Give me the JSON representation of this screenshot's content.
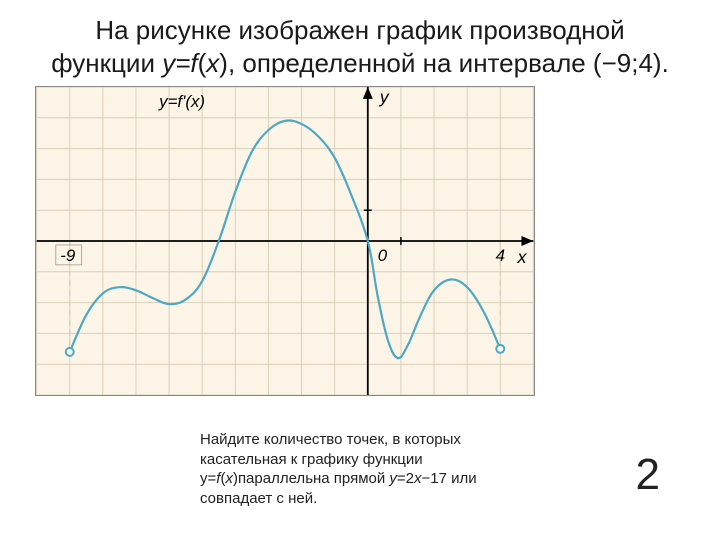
{
  "title_parts": {
    "p1": "На рисунке изображен график производной функции ",
    "fn": "y=f",
    "p2": "(",
    "x": "x",
    "p3": ")",
    "p4": ", определенной на интервале (−9;4)."
  },
  "question_parts": {
    "q1": "Найдите количество точек, в которых касательная к графику функции y=",
    "f": "f",
    "q2": "(",
    "x": "x",
    "q3": ")",
    "q4": "параллельна прямой ",
    "eq": "y",
    "q5": "=2",
    "x2": "x",
    "q6": "−17 или совпадает с ней."
  },
  "answer": "2",
  "chart": {
    "type": "line",
    "background_color": "#fcf4e6",
    "grid_color": "#d9cfb9",
    "axis_color": "#000000",
    "curve_color": "#4ca8c5",
    "curve_width": 2.2,
    "open_point_fill": "#ffffff",
    "x_range": [
      -10,
      5
    ],
    "y_range": [
      -5,
      5
    ],
    "x_ticks_labeled": {
      "-9": "-9",
      "0": "0",
      "4": "4"
    },
    "y_label": "y",
    "x_label": "x",
    "func_label": "y=f'(x)",
    "curve_points": [
      [
        -9,
        -3.6
      ],
      [
        -8.5,
        -2.4
      ],
      [
        -8,
        -1.7
      ],
      [
        -7.5,
        -1.5
      ],
      [
        -7,
        -1.6
      ],
      [
        -6.5,
        -1.85
      ],
      [
        -6,
        -2.05
      ],
      [
        -5.5,
        -1.9
      ],
      [
        -5,
        -1.3
      ],
      [
        -4.5,
        0.0
      ],
      [
        -4,
        1.6
      ],
      [
        -3.5,
        2.9
      ],
      [
        -3,
        3.6
      ],
      [
        -2.5,
        3.9
      ],
      [
        -2,
        3.8
      ],
      [
        -1.5,
        3.4
      ],
      [
        -1,
        2.7
      ],
      [
        -0.5,
        1.5
      ],
      [
        0,
        0.0
      ],
      [
        0.3,
        -1.8
      ],
      [
        0.6,
        -3.2
      ],
      [
        0.9,
        -3.8
      ],
      [
        1.2,
        -3.4
      ],
      [
        1.6,
        -2.4
      ],
      [
        2.0,
        -1.6
      ],
      [
        2.5,
        -1.25
      ],
      [
        3.0,
        -1.5
      ],
      [
        3.5,
        -2.3
      ],
      [
        4.0,
        -3.5
      ]
    ],
    "open_endpoints": [
      [
        -9,
        -3.6
      ],
      [
        4,
        -3.5
      ]
    ]
  }
}
